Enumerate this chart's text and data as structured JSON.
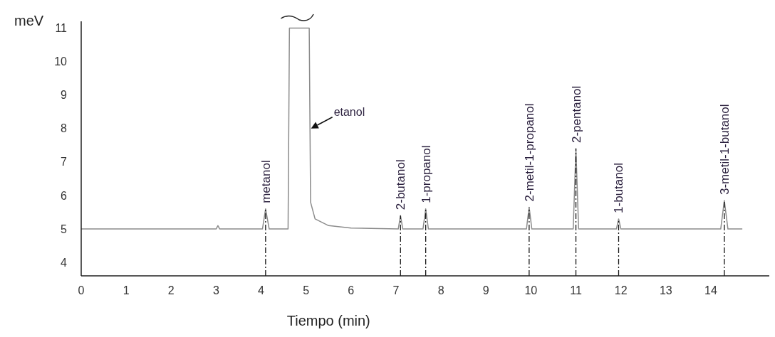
{
  "chart_data": {
    "type": "line",
    "xlabel": "Tiempo (min)",
    "ylabel": "meV",
    "series": [
      {
        "color": "#8c8c8c",
        "x": [
          0,
          3.0,
          3.04,
          3.08,
          4.03,
          4.1,
          4.18,
          4.6,
          4.63,
          5.07,
          5.1,
          5.2,
          5.5,
          6.0,
          7.05,
          7.1,
          7.15,
          7.6,
          7.66,
          7.72,
          9.9,
          9.96,
          10.02,
          10.94,
          11.0,
          11.06,
          11.9,
          11.95,
          12.0,
          14.22,
          14.3,
          14.38,
          14.7
        ],
        "values": [
          5,
          5,
          5.1,
          5,
          5,
          5.6,
          5,
          5,
          11,
          11,
          5.8,
          5.3,
          5.1,
          5.03,
          5,
          5.4,
          5,
          5,
          5.6,
          5,
          5,
          5.65,
          5,
          5,
          7.4,
          5,
          5,
          5.3,
          5,
          5,
          5.85,
          5,
          5
        ]
      }
    ],
    "xlim": [
      0,
      15.3
    ],
    "xticks": [
      0,
      1,
      2,
      3,
      4,
      5,
      6,
      7,
      8,
      9,
      10,
      11,
      12,
      13,
      14
    ],
    "ylim": [
      3.6,
      11.2
    ],
    "yticks": [
      4,
      5,
      6,
      7,
      8,
      9,
      10,
      11
    ],
    "ref_lines": [
      {
        "axis": "x",
        "value": 4.1,
        "label": "metanol",
        "line_style": "dashed"
      },
      {
        "axis": "x",
        "value": 7.1,
        "label": "2-butanol",
        "line_style": "dashed"
      },
      {
        "axis": "x",
        "value": 7.66,
        "label": "1-propanol",
        "line_style": "dashed"
      },
      {
        "axis": "x",
        "value": 9.96,
        "label": "2-metil-1-propanol",
        "line_style": "dashed"
      },
      {
        "axis": "x",
        "value": 11.0,
        "label": "2-pentanol",
        "line_style": "dashed"
      },
      {
        "axis": "x",
        "value": 11.95,
        "label": "1-butanol",
        "line_style": "dashed"
      },
      {
        "axis": "x",
        "value": 14.3,
        "label": "3-metil-1-butanol",
        "line_style": "dashed"
      }
    ],
    "annotations": [
      {
        "text": "etanol",
        "x": 5.11,
        "y": 8.0
      }
    ],
    "grid": false
  }
}
